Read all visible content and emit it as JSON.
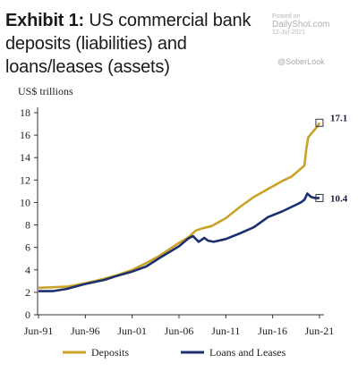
{
  "title": {
    "bold": "Exhibit 1:",
    "rest": " US commercial bank deposits (liabilities) and loans/leases (assets)"
  },
  "watermark": {
    "posted_on": "Posted on",
    "site": "DailyShot.com",
    "date": "12-Jul-2021",
    "handle": "@SoberLook"
  },
  "chart_data": {
    "type": "line",
    "title": "US commercial bank deposits (liabilities) and loans/leases (assets)",
    "ylabel": "US$ trillions",
    "xlabel": "",
    "ylim": [
      0,
      18
    ],
    "yticks": [
      0,
      2,
      4,
      6,
      8,
      10,
      12,
      14,
      16,
      18
    ],
    "xlim": [
      1991.4,
      2021.6
    ],
    "xticks": [
      {
        "label": "Jun-91",
        "x": 1991.5
      },
      {
        "label": "Jun-96",
        "x": 1996.5
      },
      {
        "label": "Jun-01",
        "x": 2001.5
      },
      {
        "label": "Jun-06",
        "x": 2006.5
      },
      {
        "label": "Jun-11",
        "x": 2011.5
      },
      {
        "label": "Jun-16",
        "x": 2016.5
      },
      {
        "label": "Jun-21",
        "x": 2021.5
      }
    ],
    "grid": false,
    "legend": "bottom",
    "series": [
      {
        "name": "Deposits",
        "color": "#c9a227",
        "end_label": "17.1",
        "points": [
          [
            1991.5,
            2.4
          ],
          [
            1993.0,
            2.45
          ],
          [
            1994.5,
            2.5
          ],
          [
            1996.5,
            2.8
          ],
          [
            1998.5,
            3.2
          ],
          [
            2000.0,
            3.55
          ],
          [
            2001.5,
            4.0
          ],
          [
            2003.0,
            4.6
          ],
          [
            2004.5,
            5.3
          ],
          [
            2006.5,
            6.4
          ],
          [
            2007.5,
            6.9
          ],
          [
            2008.3,
            7.5
          ],
          [
            2009.0,
            7.7
          ],
          [
            2010.0,
            7.9
          ],
          [
            2011.5,
            8.6
          ],
          [
            2013.0,
            9.6
          ],
          [
            2014.5,
            10.5
          ],
          [
            2016.0,
            11.2
          ],
          [
            2017.5,
            11.9
          ],
          [
            2018.5,
            12.3
          ],
          [
            2019.5,
            13.0
          ],
          [
            2019.9,
            13.3
          ],
          [
            2020.1,
            14.8
          ],
          [
            2020.3,
            15.8
          ],
          [
            2020.8,
            16.3
          ],
          [
            2021.3,
            16.8
          ],
          [
            2021.5,
            17.1
          ]
        ]
      },
      {
        "name": "Loans and Leases",
        "color": "#1c2f6e",
        "end_label": "10.4",
        "points": [
          [
            1991.5,
            2.1
          ],
          [
            1993.0,
            2.1
          ],
          [
            1994.5,
            2.3
          ],
          [
            1996.5,
            2.75
          ],
          [
            1998.5,
            3.1
          ],
          [
            2000.0,
            3.5
          ],
          [
            2001.5,
            3.85
          ],
          [
            2003.0,
            4.3
          ],
          [
            2004.5,
            5.1
          ],
          [
            2006.5,
            6.1
          ],
          [
            2007.5,
            6.8
          ],
          [
            2008.0,
            7.0
          ],
          [
            2008.6,
            6.5
          ],
          [
            2009.2,
            6.85
          ],
          [
            2009.6,
            6.6
          ],
          [
            2010.2,
            6.5
          ],
          [
            2011.5,
            6.75
          ],
          [
            2013.0,
            7.25
          ],
          [
            2014.5,
            7.8
          ],
          [
            2016.0,
            8.7
          ],
          [
            2017.5,
            9.2
          ],
          [
            2018.5,
            9.6
          ],
          [
            2019.5,
            10.0
          ],
          [
            2019.9,
            10.25
          ],
          [
            2020.2,
            10.8
          ],
          [
            2020.6,
            10.5
          ],
          [
            2021.0,
            10.4
          ],
          [
            2021.5,
            10.4
          ]
        ]
      }
    ]
  }
}
